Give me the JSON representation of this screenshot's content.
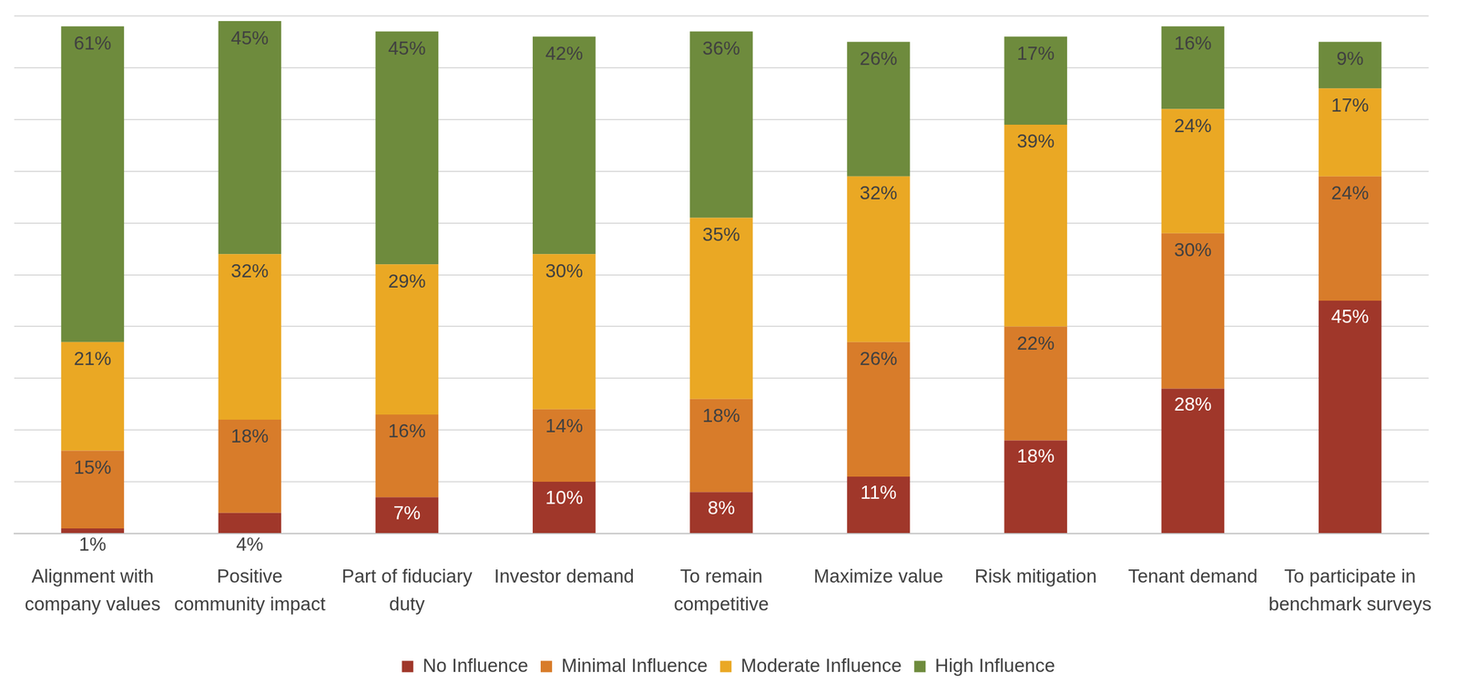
{
  "chart_data": {
    "type": "bar",
    "stacked": true,
    "categories": [
      "Alignment with company values",
      "Positive community impact",
      "Part of fiduciary duty",
      "Investor demand",
      "To remain competitive",
      "Maximize value",
      "Risk mitigation",
      "Tenant demand",
      "To participate in benchmark surveys"
    ],
    "series": [
      {
        "name": "No Influence",
        "color": "#a0372a",
        "values": [
          1,
          4,
          7,
          10,
          8,
          11,
          18,
          28,
          45
        ],
        "value_labels": [
          "1%",
          "4%",
          "7%",
          "10%",
          "8%",
          "11%",
          "18%",
          "28%",
          "45%"
        ]
      },
      {
        "name": "Minimal Influence",
        "color": "#d87c2a",
        "values": [
          15,
          18,
          16,
          14,
          18,
          26,
          22,
          30,
          24
        ],
        "value_labels": [
          "15%",
          "18%",
          "16%",
          "14%",
          "18%",
          "26%",
          "22%",
          "30%",
          "24%"
        ]
      },
      {
        "name": "Moderate Influence",
        "color": "#eaa824",
        "values": [
          21,
          32,
          29,
          30,
          35,
          32,
          39,
          24,
          17
        ],
        "value_labels": [
          "21%",
          "32%",
          "29%",
          "30%",
          "35%",
          "32%",
          "39%",
          "24%",
          "17%"
        ]
      },
      {
        "name": "High Influence",
        "color": "#6e8b3d",
        "values": [
          61,
          45,
          45,
          42,
          36,
          26,
          17,
          16,
          9
        ],
        "value_labels": [
          "61%",
          "45%",
          "45%",
          "42%",
          "36%",
          "26%",
          "17%",
          "16%",
          "9%"
        ]
      }
    ],
    "ylim": [
      0,
      100
    ],
    "yticks": [
      0,
      10,
      20,
      30,
      40,
      50,
      60,
      70,
      80,
      90,
      100
    ],
    "grid": true,
    "legend": "bottom",
    "data_labels": true,
    "tick_labels": "x"
  }
}
